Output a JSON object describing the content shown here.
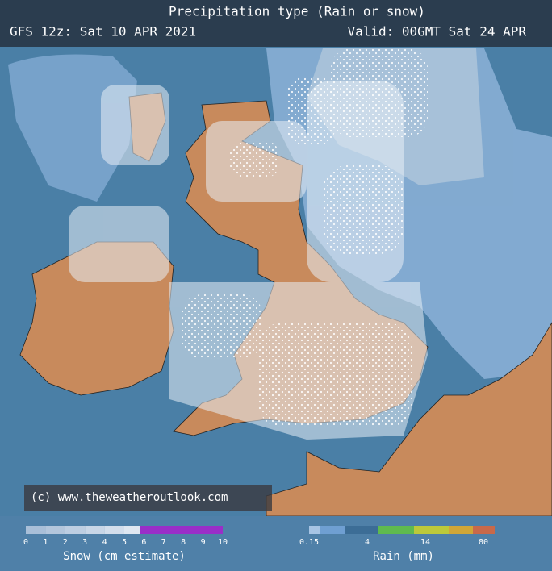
{
  "header": {
    "title": "Precipitation type (Rain or snow)",
    "run": "GFS 12z: Sat 10 APR 2021",
    "valid": "Valid: 00GMT Sat 24 APR"
  },
  "copyright": "(c) www.theweatheroutlook.com",
  "snow_legend": {
    "ticks": [
      "0",
      "1",
      "2",
      "3",
      "4",
      "5",
      "6",
      "7",
      "8",
      "9",
      "10"
    ],
    "label": "Snow (cm estimate)"
  },
  "rain_legend": {
    "ticks": [
      "0.15",
      "4",
      "14",
      "80"
    ],
    "label": "Rain (mm)"
  }
}
